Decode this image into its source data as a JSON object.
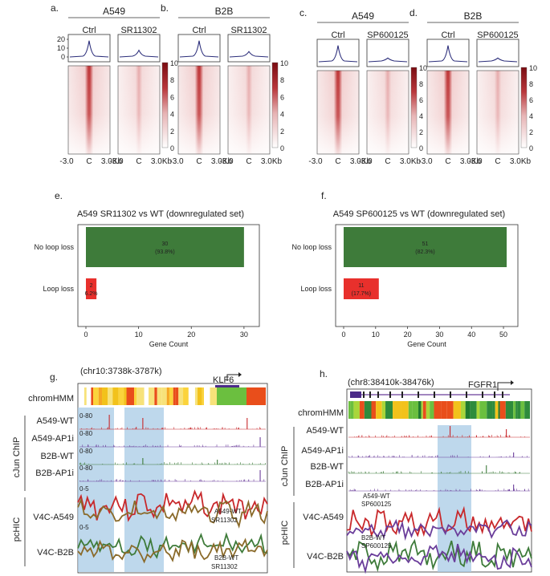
{
  "panels": {
    "a": {
      "letter": "a.",
      "cell": "A549",
      "cond1": "Ctrl",
      "cond2": "SR11302"
    },
    "b": {
      "letter": "b.",
      "cell": "B2B",
      "cond1": "Ctrl",
      "cond2": "SR11302"
    },
    "c": {
      "letter": "c.",
      "cell": "A549",
      "cond1": "Ctrl",
      "cond2": "SP600125"
    },
    "d": {
      "letter": "d.",
      "cell": "B2B",
      "cond1": "Ctrl",
      "cond2": "SP600125"
    },
    "profile_ticks": [
      "20",
      "10",
      "0"
    ],
    "colorbar_ticks": [
      "10",
      "8",
      "6",
      "4",
      "2",
      "0"
    ],
    "heat_x": {
      "left": "-3.0",
      "center": "C",
      "right": "3.0Kb"
    }
  },
  "chart_data": [
    {
      "type": "bar",
      "panel": "e.",
      "title": "A549 SR11302 vs WT (downregulated set)",
      "xlabel": "Gene Count",
      "orientation": "horizontal",
      "categories": [
        "No loop loss",
        "Loop loss"
      ],
      "values": [
        30,
        2
      ],
      "labels": [
        "30",
        "2"
      ],
      "pct_labels": [
        "(93.8%)",
        "6.2%"
      ],
      "colors": [
        "#3e7b3a",
        "#e8302c"
      ],
      "xticks": [
        "0",
        "10",
        "20",
        "30"
      ],
      "xlim": [
        0,
        32
      ]
    },
    {
      "type": "bar",
      "panel": "f.",
      "title": "A549 SP600125 vs WT (downregulated set)",
      "xlabel": "Gene Count",
      "orientation": "horizontal",
      "categories": [
        "No loop loss",
        "Loop loss"
      ],
      "values": [
        51,
        11
      ],
      "labels": [
        "51",
        "11"
      ],
      "pct_labels": [
        "(82.3%)",
        "(17.7%)"
      ],
      "colors": [
        "#3e7b3a",
        "#e8302c"
      ],
      "xticks": [
        "0",
        "10",
        "20",
        "30",
        "40",
        "50"
      ],
      "xlim": [
        0,
        53
      ]
    }
  ],
  "panel_g": {
    "letter": "g.",
    "region": "(chr10:3738k-3787k)",
    "gene": "KLF6",
    "tracks": [
      "A549-WT",
      "A549-AP1i",
      "B2B-WT",
      "B2B-AP1i"
    ],
    "range_chip": "0-80",
    "range_hic": "0-5",
    "hic": [
      "V4C-A549",
      "V4C-B2B"
    ],
    "legend1": [
      "A549-WT",
      "SR11302"
    ],
    "legend2": [
      "B2B-WT",
      "SR11302"
    ]
  },
  "panel_h": {
    "letter": "h.",
    "region": "(chr8:38410k-38476k)",
    "gene": "FGFR1",
    "tracks": [
      "A549-WT",
      "A549-AP1i",
      "B2B-WT",
      "B2B-AP1i"
    ],
    "hic": [
      "V4C-A549",
      "V4C-B2B"
    ],
    "legend1": [
      "A549-WT",
      "SP600125"
    ],
    "legend2": [
      "B2B-WT",
      "SP600125"
    ]
  },
  "shared": {
    "chromhmm": "chromHMM",
    "chip_group": "cJun ChIP",
    "hic_group": "pcHIC"
  },
  "colors": {
    "red": "#c8282b",
    "green": "#3e7b3a",
    "purple": "#6a3d9a",
    "blue_shade": "#a8cbe6",
    "olive": "#8a6a2a"
  }
}
